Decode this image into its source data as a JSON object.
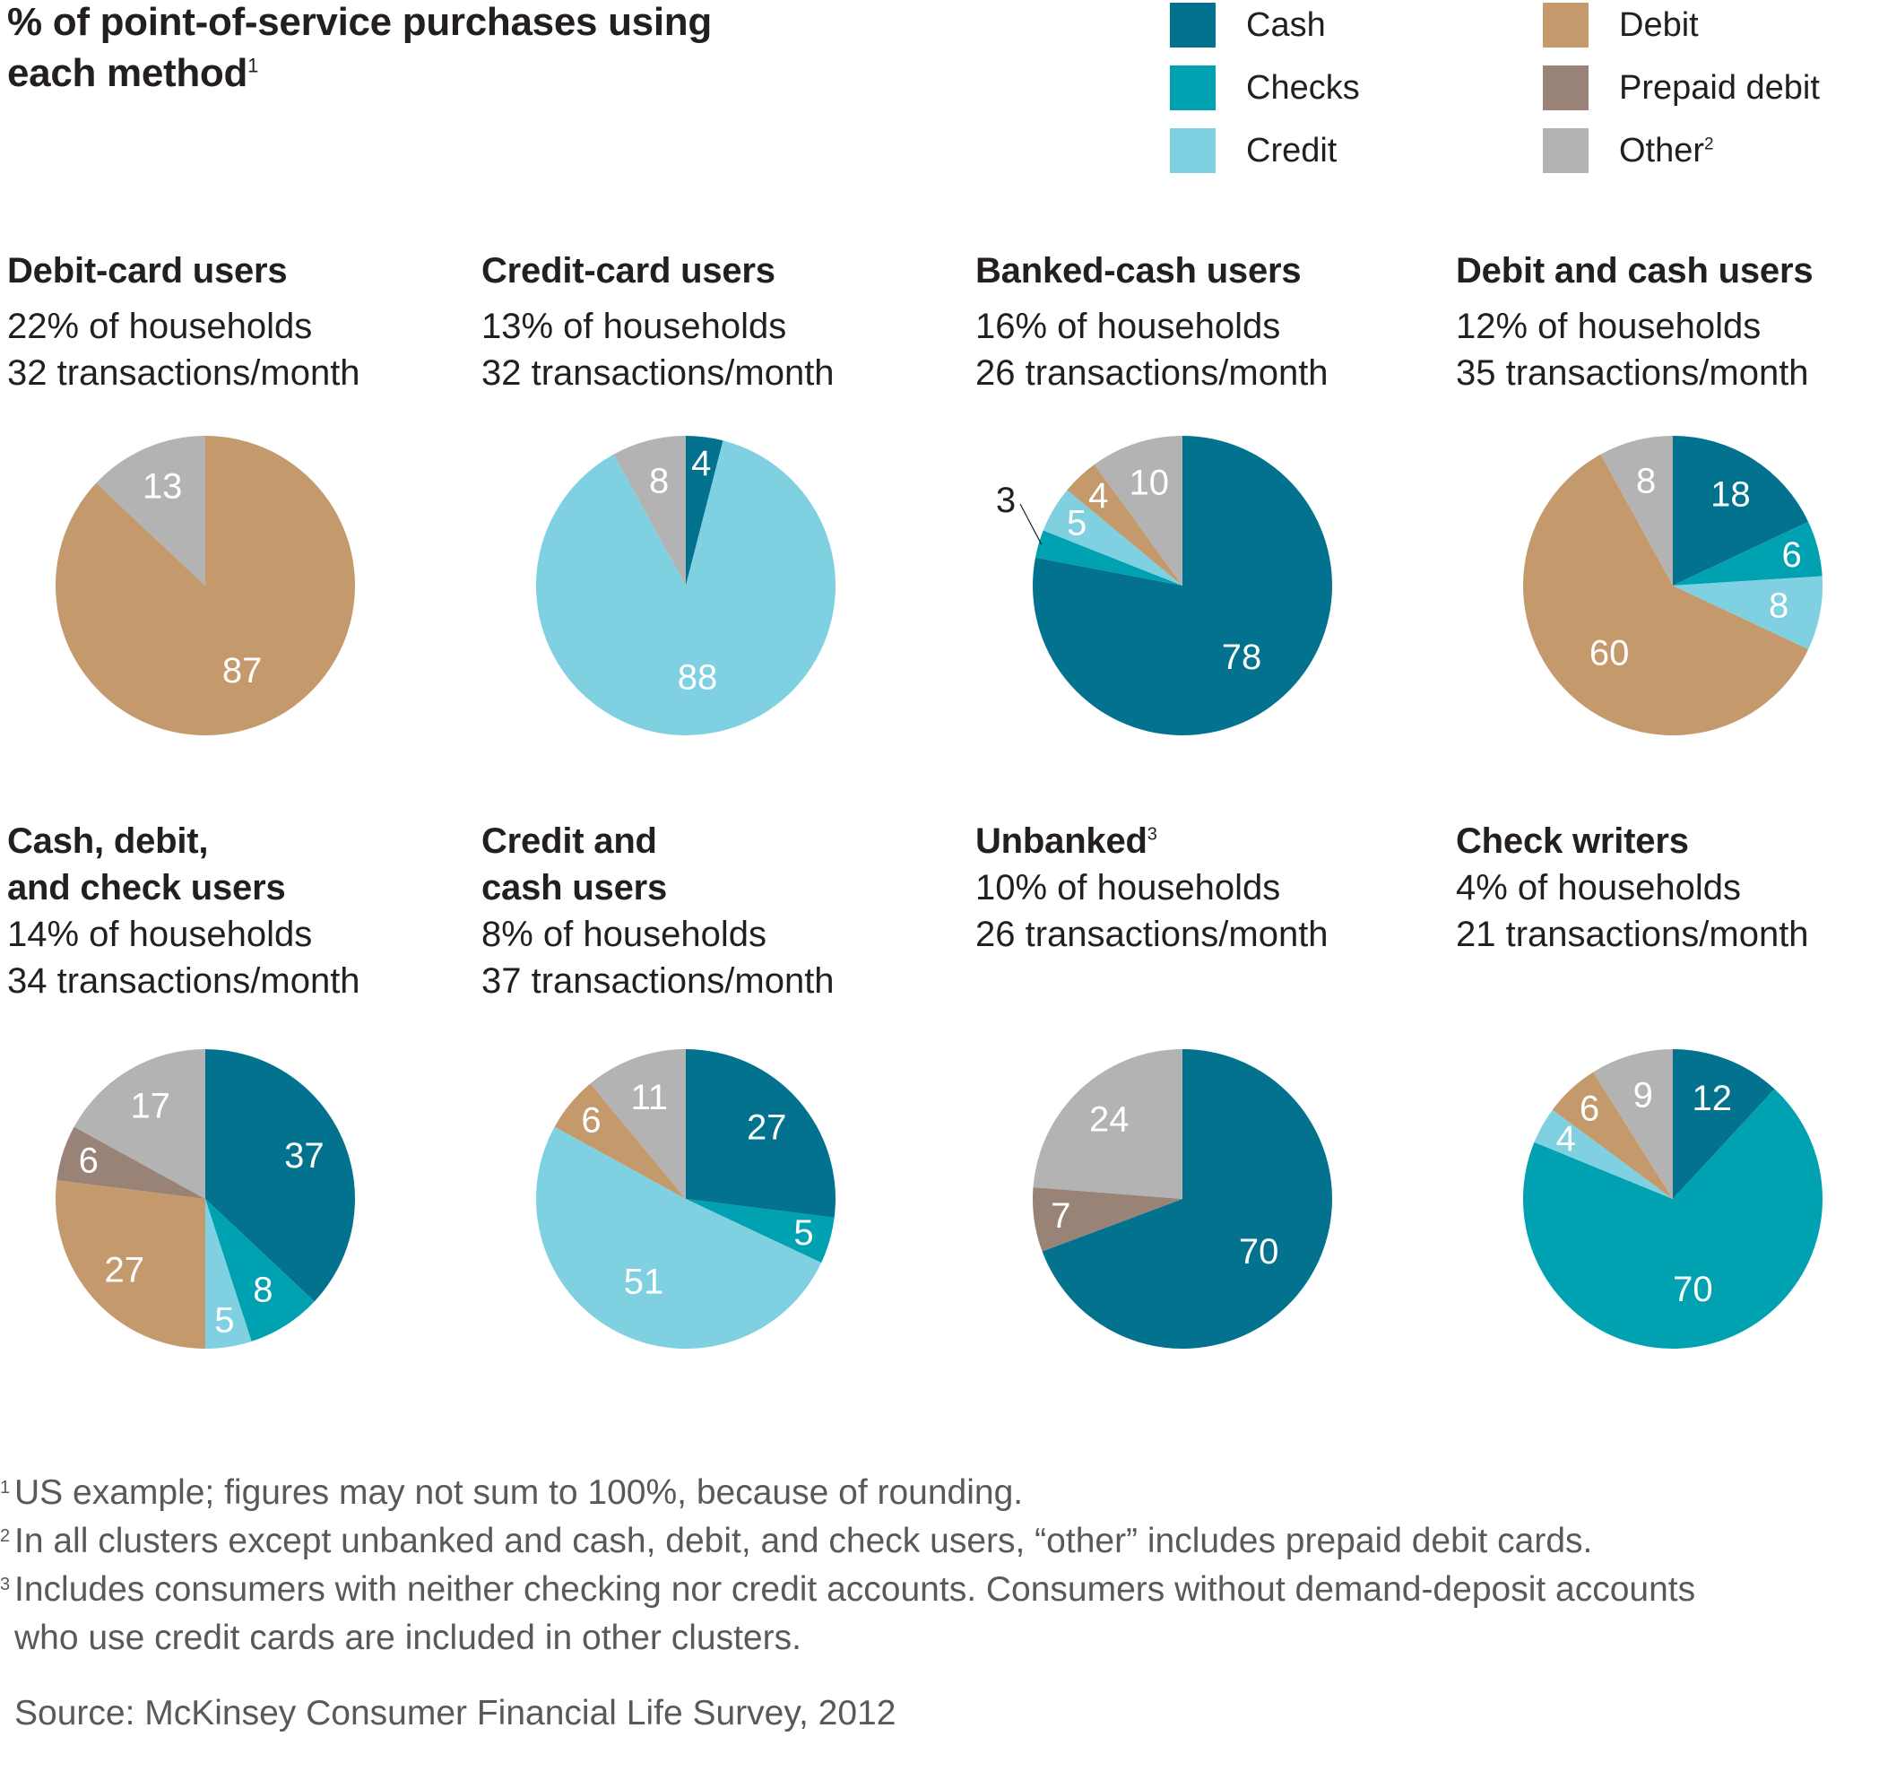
{
  "title": {
    "text": "% of point-of-service purchases using each method",
    "line1": "% of point-of-service purchases using",
    "line2": "each method",
    "footnote_ref": "1"
  },
  "legend": {
    "items": [
      {
        "key": "cash",
        "label": "Cash",
        "sup": "",
        "color": "#02728f"
      },
      {
        "key": "checks",
        "label": "Checks",
        "sup": "",
        "color": "#00a1b0"
      },
      {
        "key": "credit",
        "label": "Credit",
        "sup": "",
        "color": "#7fd0e1"
      },
      {
        "key": "debit",
        "label": "Debit",
        "sup": "",
        "color": "#c49a6c"
      },
      {
        "key": "prepaid",
        "label": "Prepaid debit",
        "sup": "",
        "color": "#998276"
      },
      {
        "key": "other",
        "label": "Other",
        "sup": "2",
        "color": "#b3b3b3"
      }
    ]
  },
  "chart_data": [
    {
      "type": "pie",
      "title": "Debit-card users",
      "title_sup": "",
      "households": "22% of households",
      "transactions": "32 transactions/month",
      "series": [
        {
          "name": "Debit",
          "value": 87
        },
        {
          "name": "Other",
          "value": 13
        }
      ]
    },
    {
      "type": "pie",
      "title": "Credit-card users",
      "title_sup": "",
      "households": "13% of households",
      "transactions": "32 transactions/month",
      "series": [
        {
          "name": "Cash",
          "value": 4
        },
        {
          "name": "Credit",
          "value": 88
        },
        {
          "name": "Other",
          "value": 8
        }
      ]
    },
    {
      "type": "pie",
      "title": "Banked-cash users",
      "title_sup": "",
      "households": "16% of households",
      "transactions": "26 transactions/month",
      "series": [
        {
          "name": "Cash",
          "value": 78
        },
        {
          "name": "Checks",
          "value": 3
        },
        {
          "name": "Credit",
          "value": 5
        },
        {
          "name": "Debit",
          "value": 4
        },
        {
          "name": "Other",
          "value": 10
        }
      ]
    },
    {
      "type": "pie",
      "title": "Debit and cash users",
      "title_sup": "",
      "households": "12% of households",
      "transactions": "35 transactions/month",
      "series": [
        {
          "name": "Cash",
          "value": 18
        },
        {
          "name": "Checks",
          "value": 6
        },
        {
          "name": "Credit",
          "value": 8
        },
        {
          "name": "Debit",
          "value": 60
        },
        {
          "name": "Other",
          "value": 8
        }
      ]
    },
    {
      "type": "pie",
      "title": "Cash, debit, and check users",
      "title_lines": [
        "Cash, debit,",
        "and check users"
      ],
      "title_sup": "",
      "households": "14% of households",
      "transactions": "34 transactions/month",
      "series": [
        {
          "name": "Cash",
          "value": 37
        },
        {
          "name": "Checks",
          "value": 8
        },
        {
          "name": "Credit",
          "value": 5
        },
        {
          "name": "Debit",
          "value": 27
        },
        {
          "name": "Prepaid debit",
          "value": 6
        },
        {
          "name": "Other",
          "value": 17
        }
      ]
    },
    {
      "type": "pie",
      "title": "Credit and cash users",
      "title_lines": [
        "Credit and",
        "cash users"
      ],
      "title_sup": "",
      "households": "8% of households",
      "transactions": "37 transactions/month",
      "series": [
        {
          "name": "Cash",
          "value": 27
        },
        {
          "name": "Checks",
          "value": 5
        },
        {
          "name": "Credit",
          "value": 51
        },
        {
          "name": "Debit",
          "value": 6
        },
        {
          "name": "Other",
          "value": 11
        }
      ]
    },
    {
      "type": "pie",
      "title": "Unbanked",
      "title_sup": "3",
      "households": "10% of households",
      "transactions": "26 transactions/month",
      "series": [
        {
          "name": "Cash",
          "value": 70
        },
        {
          "name": "Prepaid debit",
          "value": 7
        },
        {
          "name": "Other",
          "value": 24
        }
      ]
    },
    {
      "type": "pie",
      "title": "Check writers",
      "title_sup": "",
      "households": "4% of households",
      "transactions": "21 transactions/month",
      "series": [
        {
          "name": "Cash",
          "value": 12
        },
        {
          "name": "Checks",
          "value": 70
        },
        {
          "name": "Credit",
          "value": 4
        },
        {
          "name": "Debit",
          "value": 6
        },
        {
          "name": "Other",
          "value": 9
        }
      ]
    }
  ],
  "footnotes": [
    {
      "mark": "1",
      "text": "US example; figures may not sum to 100%, because of rounding."
    },
    {
      "mark": "2",
      "text": "In all clusters except unbanked and cash, debit, and check users, “other” includes prepaid debit cards."
    },
    {
      "mark": "3",
      "text": "Includes consumers with neither checking nor credit accounts. Consumers without demand-deposit accounts who use credit cards are included in other clusters."
    }
  ],
  "source": "Source: McKinsey Consumer Financial Life Survey, 2012"
}
